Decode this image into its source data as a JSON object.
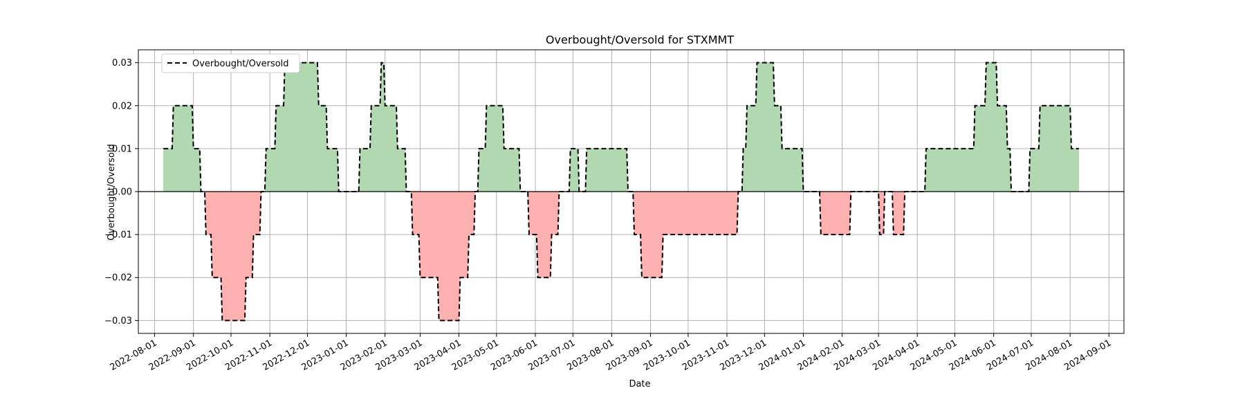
{
  "chart_data": {
    "type": "line",
    "title": "Overbought/Oversold for STXMMT",
    "xlabel": "Date",
    "ylabel": "Overbought/Oversold",
    "legend": {
      "placement": "top-left",
      "entries": [
        {
          "label": "Overbought/Oversold",
          "style": "dashed",
          "color": "#000000"
        }
      ]
    },
    "grid": true,
    "xlim": [
      "2022-07-19",
      "2024-09-13"
    ],
    "ylim": [
      -0.033,
      0.033
    ],
    "x_ticks": [
      "2022-08-01",
      "2022-09-01",
      "2022-10-01",
      "2022-11-01",
      "2022-12-01",
      "2023-01-01",
      "2023-02-01",
      "2023-03-01",
      "2023-04-01",
      "2023-05-01",
      "2023-06-01",
      "2023-07-01",
      "2023-08-01",
      "2023-09-01",
      "2023-10-01",
      "2023-11-01",
      "2023-12-01",
      "2024-01-01",
      "2024-02-01",
      "2024-03-01",
      "2024-04-01",
      "2024-05-01",
      "2024-06-01",
      "2024-07-01",
      "2024-08-01",
      "2024-09-01"
    ],
    "y_ticks": [
      "0.03",
      "0.02",
      "0.01",
      "0.00",
      "−0.01",
      "−0.02",
      "−0.03"
    ],
    "y_tick_values": [
      0.03,
      0.02,
      0.01,
      0.0,
      -0.01,
      -0.02,
      -0.03
    ],
    "fill_colors": {
      "positive": "#b2d8b2",
      "negative": "#ffb1b1"
    },
    "series": [
      {
        "name": "Overbought/Oversold",
        "points": [
          [
            "2022-08-08",
            0.01
          ],
          [
            "2022-08-15",
            0.01
          ],
          [
            "2022-08-16",
            0.02
          ],
          [
            "2022-08-31",
            0.02
          ],
          [
            "2022-09-01",
            0.01
          ],
          [
            "2022-09-06",
            0.01
          ],
          [
            "2022-09-07",
            0.0
          ],
          [
            "2022-09-10",
            0.0
          ],
          [
            "2022-09-11",
            -0.01
          ],
          [
            "2022-09-15",
            -0.01
          ],
          [
            "2022-09-16",
            -0.02
          ],
          [
            "2022-09-23",
            -0.02
          ],
          [
            "2022-09-24",
            -0.03
          ],
          [
            "2022-10-12",
            -0.03
          ],
          [
            "2022-10-13",
            -0.02
          ],
          [
            "2022-10-18",
            -0.02
          ],
          [
            "2022-10-19",
            -0.01
          ],
          [
            "2022-10-24",
            -0.01
          ],
          [
            "2022-10-25",
            0.0
          ],
          [
            "2022-10-28",
            0.0
          ],
          [
            "2022-10-29",
            0.01
          ],
          [
            "2022-11-05",
            0.01
          ],
          [
            "2022-11-06",
            0.02
          ],
          [
            "2022-11-12",
            0.02
          ],
          [
            "2022-11-13",
            0.03
          ],
          [
            "2022-12-09",
            0.03
          ],
          [
            "2022-12-10",
            0.02
          ],
          [
            "2022-12-16",
            0.02
          ],
          [
            "2022-12-17",
            0.01
          ],
          [
            "2022-12-25",
            0.01
          ],
          [
            "2022-12-26",
            0.0
          ],
          [
            "2023-01-11",
            0.0
          ],
          [
            "2023-01-12",
            0.01
          ],
          [
            "2023-01-20",
            0.01
          ],
          [
            "2023-01-21",
            0.02
          ],
          [
            "2023-01-28",
            0.02
          ],
          [
            "2023-01-29",
            0.03
          ],
          [
            "2023-01-31",
            0.03
          ],
          [
            "2023-02-01",
            0.02
          ],
          [
            "2023-02-10",
            0.02
          ],
          [
            "2023-02-11",
            0.01
          ],
          [
            "2023-02-17",
            0.01
          ],
          [
            "2023-02-18",
            0.0
          ],
          [
            "2023-02-22",
            0.0
          ],
          [
            "2023-02-23",
            -0.01
          ],
          [
            "2023-02-28",
            -0.01
          ],
          [
            "2023-03-01",
            -0.02
          ],
          [
            "2023-03-15",
            -0.02
          ],
          [
            "2023-03-16",
            -0.03
          ],
          [
            "2023-04-01",
            -0.03
          ],
          [
            "2023-04-02",
            -0.02
          ],
          [
            "2023-04-08",
            -0.02
          ],
          [
            "2023-04-09",
            -0.01
          ],
          [
            "2023-04-13",
            -0.01
          ],
          [
            "2023-04-14",
            0.0
          ],
          [
            "2023-04-16",
            0.0
          ],
          [
            "2023-04-17",
            0.01
          ],
          [
            "2023-04-22",
            0.01
          ],
          [
            "2023-04-23",
            0.02
          ],
          [
            "2023-05-06",
            0.02
          ],
          [
            "2023-05-07",
            0.01
          ],
          [
            "2023-05-19",
            0.01
          ],
          [
            "2023-05-20",
            0.0
          ],
          [
            "2023-05-26",
            0.0
          ],
          [
            "2023-05-27",
            -0.01
          ],
          [
            "2023-06-02",
            -0.01
          ],
          [
            "2023-06-03",
            -0.02
          ],
          [
            "2023-06-13",
            -0.02
          ],
          [
            "2023-06-14",
            -0.01
          ],
          [
            "2023-06-19",
            -0.01
          ],
          [
            "2023-06-20",
            0.0
          ],
          [
            "2023-06-28",
            0.0
          ],
          [
            "2023-06-29",
            0.01
          ],
          [
            "2023-07-05",
            0.01
          ],
          [
            "2023-07-06",
            0.0
          ],
          [
            "2023-07-11",
            0.0
          ],
          [
            "2023-07-12",
            0.01
          ],
          [
            "2023-08-13",
            0.01
          ],
          [
            "2023-08-14",
            0.0
          ],
          [
            "2023-08-18",
            0.0
          ],
          [
            "2023-08-19",
            -0.01
          ],
          [
            "2023-08-24",
            -0.01
          ],
          [
            "2023-08-25",
            -0.02
          ],
          [
            "2023-09-10",
            -0.02
          ],
          [
            "2023-09-11",
            -0.01
          ],
          [
            "2023-11-09",
            -0.01
          ],
          [
            "2023-11-10",
            0.0
          ],
          [
            "2023-11-13",
            0.0
          ],
          [
            "2023-11-14",
            0.01
          ],
          [
            "2023-11-16",
            0.01
          ],
          [
            "2023-11-17",
            0.02
          ],
          [
            "2023-11-24",
            0.02
          ],
          [
            "2023-11-25",
            0.03
          ],
          [
            "2023-12-08",
            0.03
          ],
          [
            "2023-12-09",
            0.02
          ],
          [
            "2023-12-14",
            0.02
          ],
          [
            "2023-12-15",
            0.01
          ],
          [
            "2023-12-31",
            0.01
          ],
          [
            "2024-01-01",
            0.0
          ],
          [
            "2024-01-14",
            0.0
          ],
          [
            "2024-01-15",
            -0.01
          ],
          [
            "2024-02-07",
            -0.01
          ],
          [
            "2024-02-08",
            0.0
          ],
          [
            "2024-03-01",
            0.0
          ],
          [
            "2024-03-02",
            -0.01
          ],
          [
            "2024-03-05",
            -0.01
          ],
          [
            "2024-03-06",
            0.0
          ],
          [
            "2024-03-12",
            0.0
          ],
          [
            "2024-03-13",
            -0.01
          ],
          [
            "2024-03-21",
            -0.01
          ],
          [
            "2024-03-22",
            0.0
          ],
          [
            "2024-04-07",
            0.0
          ],
          [
            "2024-04-08",
            0.01
          ],
          [
            "2024-05-16",
            0.01
          ],
          [
            "2024-05-17",
            0.02
          ],
          [
            "2024-05-25",
            0.02
          ],
          [
            "2024-05-26",
            0.03
          ],
          [
            "2024-06-03",
            0.03
          ],
          [
            "2024-06-04",
            0.02
          ],
          [
            "2024-06-11",
            0.02
          ],
          [
            "2024-06-12",
            0.01
          ],
          [
            "2024-06-14",
            0.01
          ],
          [
            "2024-06-15",
            0.0
          ],
          [
            "2024-06-29",
            0.0
          ],
          [
            "2024-06-30",
            0.01
          ],
          [
            "2024-07-07",
            0.01
          ],
          [
            "2024-07-08",
            0.02
          ],
          [
            "2024-08-01",
            0.02
          ],
          [
            "2024-08-02",
            0.01
          ],
          [
            "2024-08-08",
            0.01
          ]
        ]
      }
    ]
  }
}
